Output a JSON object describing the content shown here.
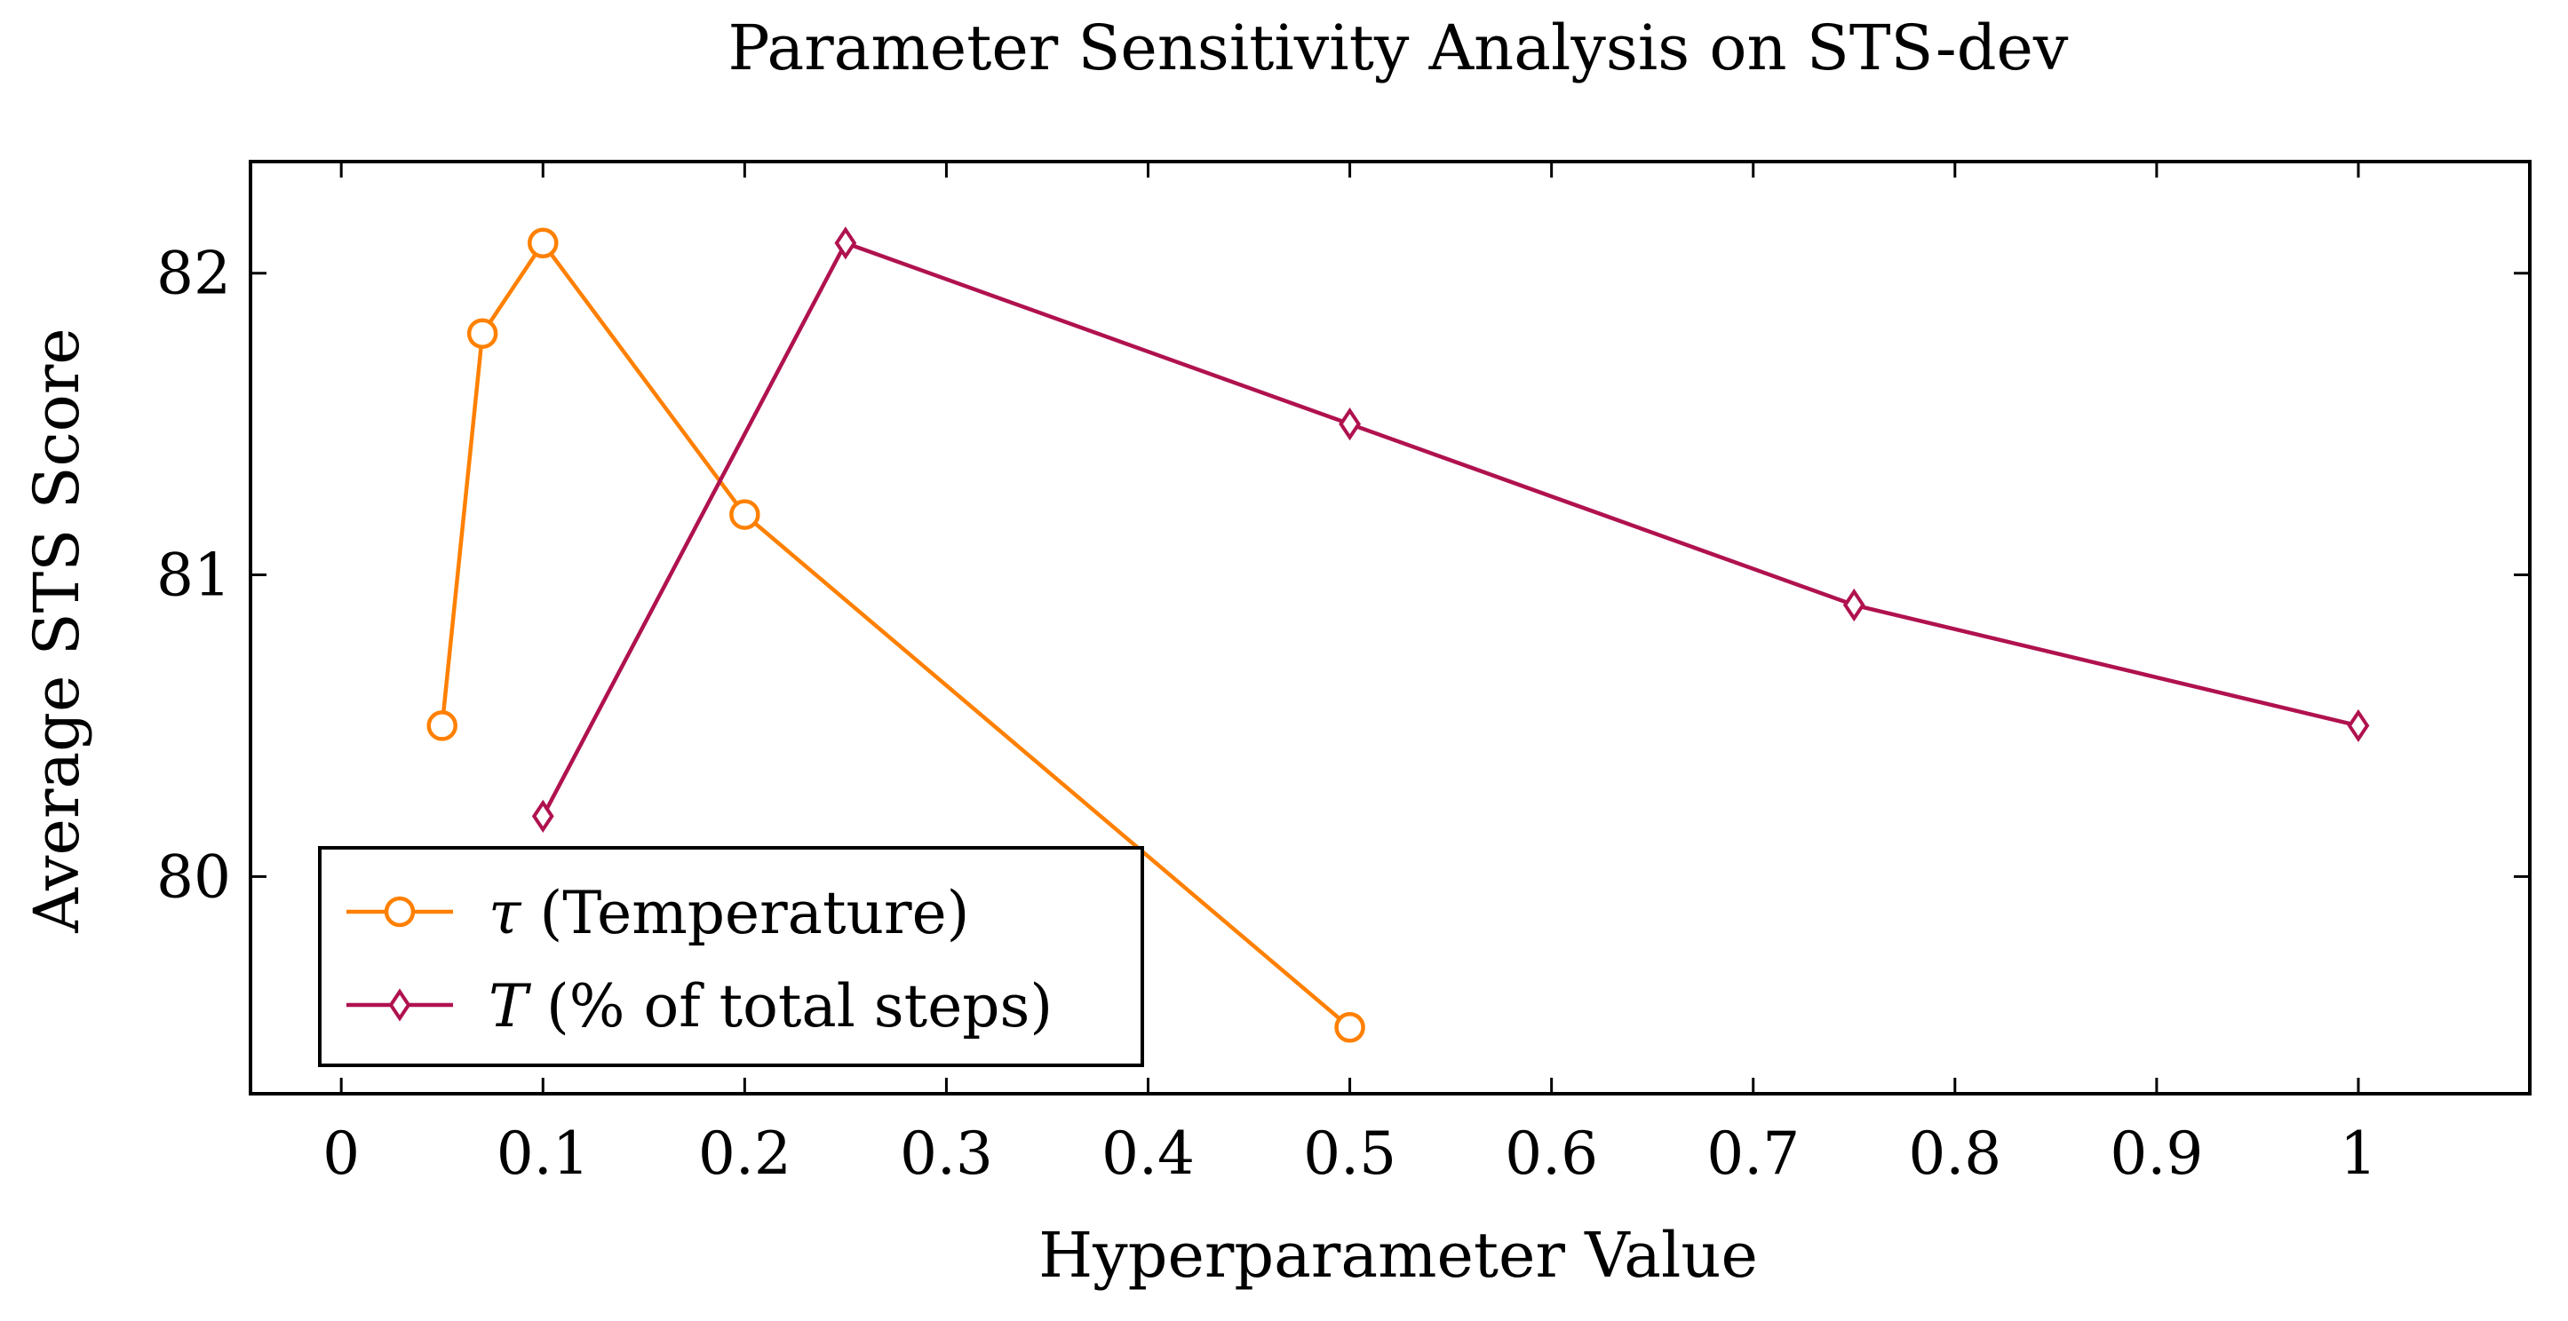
{
  "chart_data": {
    "type": "line",
    "title": "Parameter Sensitivity Analysis on STS-dev",
    "xlabel": "Hyperparameter Value",
    "ylabel": "Average STS Score",
    "xlim": [
      -0.045,
      1.085
    ],
    "ylim": [
      79.28,
      82.37
    ],
    "x_ticks": [
      0,
      0.1,
      0.2,
      0.3,
      0.4,
      0.5,
      0.6,
      0.7,
      0.8,
      0.9,
      1
    ],
    "x_tick_labels": [
      "0",
      "0.1",
      "0.2",
      "0.3",
      "0.4",
      "0.5",
      "0.6",
      "0.7",
      "0.8",
      "0.9",
      "1"
    ],
    "y_ticks": [
      80,
      81,
      82
    ],
    "y_tick_labels": [
      "80",
      "81",
      "82"
    ],
    "grid": false,
    "legend_position": "bottom-left",
    "series": [
      {
        "name": "τ (Temperature)",
        "symbol": "τ",
        "label_rest": " (Temperature)",
        "color": "#ff8000",
        "marker": "circle",
        "x": [
          0.05,
          0.07,
          0.1,
          0.2,
          0.5
        ],
        "y": [
          80.5,
          81.8,
          82.1,
          81.2,
          79.5
        ]
      },
      {
        "name": "T (% of total steps)",
        "symbol": "T",
        "label_rest": " (% of total steps)",
        "color": "#b0124f",
        "marker": "diamond",
        "x": [
          0.1,
          0.25,
          0.5,
          0.75,
          1.0
        ],
        "y": [
          80.2,
          82.1,
          81.5,
          80.9,
          80.5
        ]
      }
    ]
  }
}
